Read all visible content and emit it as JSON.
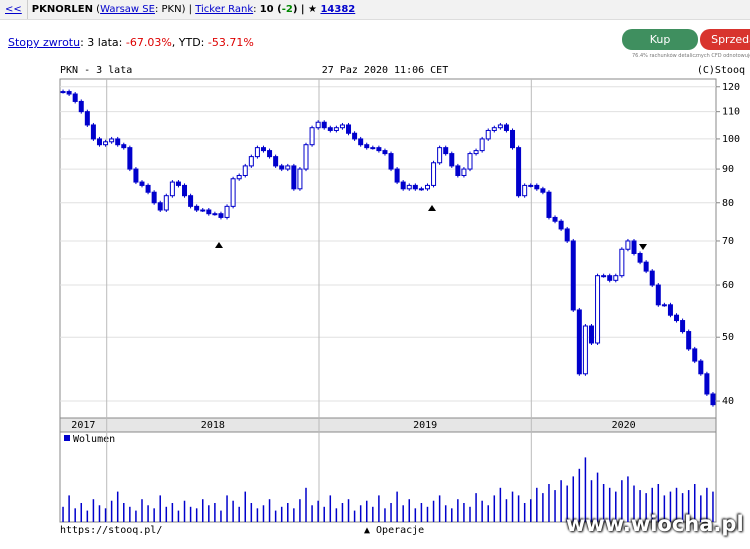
{
  "header": {
    "back": "<<",
    "parts": [
      {
        "text": "PKNORLEN",
        "style": "bold"
      },
      {
        "text": " (",
        "style": "plain"
      },
      {
        "text": "Warsaw SE",
        "style": "link"
      },
      {
        "text": ": PKN) | ",
        "style": "plain"
      },
      {
        "text": "Ticker Rank",
        "style": "link"
      },
      {
        "text": ": ",
        "style": "plain"
      },
      {
        "text": "10",
        "style": "bold"
      },
      {
        "text": " (",
        "style": "bold"
      },
      {
        "text": "-2",
        "style": "pos"
      },
      {
        "text": ") | ★ ",
        "style": "bold"
      },
      {
        "text": "14382",
        "style": "boldlink"
      }
    ]
  },
  "returns": {
    "parts": [
      {
        "text": "Stopy zwrotu",
        "style": "link"
      },
      {
        "text": ": 3 lata: ",
        "style": "plain"
      },
      {
        "text": "-67.03%",
        "style": "neg"
      },
      {
        "text": ", YTD: ",
        "style": "plain"
      },
      {
        "text": "-53.71%",
        "style": "neg"
      }
    ]
  },
  "buttons": {
    "buy": "Kup",
    "sell": "Sprzedaj",
    "disclaimer": "76.4% rachunków detalicznych CFD odnotowuje stratę"
  },
  "watermark": "www.wiocha.pl",
  "chart_data": {
    "type": "candlestick",
    "title": "PKN - 3 lata",
    "date": "27 Paz 2020 11:06 CET",
    "credit": "(C)Stooq",
    "color": "#0000cc",
    "log": true,
    "grid": true,
    "ylim": [
      37.7,
      123.3
    ],
    "yticks": [
      40,
      50,
      60,
      70,
      80,
      90,
      100,
      110,
      120
    ],
    "xlim": [
      2017.78,
      2020.87
    ],
    "xticks": [
      {
        "value": 2017,
        "label": "2017"
      },
      {
        "value": 2018,
        "label": "2018"
      },
      {
        "value": 2019,
        "label": "2019"
      },
      {
        "value": 2020,
        "label": "2020"
      }
    ],
    "values": [
      118,
      117,
      114,
      110,
      105,
      100,
      98,
      99,
      100,
      98,
      97,
      90,
      86,
      85,
      83,
      80,
      78,
      82,
      86,
      85,
      82,
      79,
      78,
      78,
      77,
      77,
      76,
      79,
      87,
      88,
      91,
      94,
      97,
      96,
      94,
      91,
      90,
      91,
      84,
      90,
      98,
      104,
      106,
      104,
      103,
      104,
      105,
      102,
      100,
      98,
      97,
      97,
      96,
      95,
      90,
      86,
      84,
      85,
      84,
      84,
      85,
      92,
      97,
      95,
      91,
      88,
      90,
      95,
      96,
      100,
      103,
      104,
      105,
      103,
      97,
      82,
      85,
      85,
      84,
      83,
      76,
      75,
      73,
      70,
      55,
      44,
      52,
      49,
      62,
      62,
      61,
      62,
      68,
      70,
      67,
      65,
      63,
      60,
      56,
      56,
      54,
      53,
      51,
      48,
      46,
      44,
      41,
      39.5
    ],
    "volume": {
      "name": "Wolumen",
      "vlim": [
        0,
        100
      ],
      "values": [
        20,
        35,
        18,
        25,
        15,
        30,
        22,
        18,
        28,
        40,
        25,
        20,
        15,
        30,
        22,
        18,
        35,
        20,
        25,
        15,
        28,
        20,
        18,
        30,
        22,
        25,
        15,
        35,
        28,
        20,
        40,
        25,
        18,
        22,
        30,
        15,
        20,
        25,
        18,
        30,
        45,
        22,
        28,
        20,
        35,
        18,
        25,
        30,
        15,
        22,
        28,
        20,
        35,
        18,
        25,
        40,
        22,
        30,
        18,
        25,
        20,
        28,
        35,
        22,
        18,
        30,
        25,
        20,
        38,
        28,
        22,
        35,
        45,
        30,
        40,
        35,
        25,
        30,
        45,
        38,
        50,
        42,
        55,
        48,
        60,
        70,
        85,
        55,
        65,
        50,
        45,
        40,
        55,
        60,
        48,
        42,
        38,
        45,
        50,
        35,
        40,
        45,
        38,
        42,
        50,
        35,
        45,
        40
      ]
    },
    "footer": {
      "url": "https://stooq.pl/",
      "operations": "▲ Operacje"
    }
  }
}
